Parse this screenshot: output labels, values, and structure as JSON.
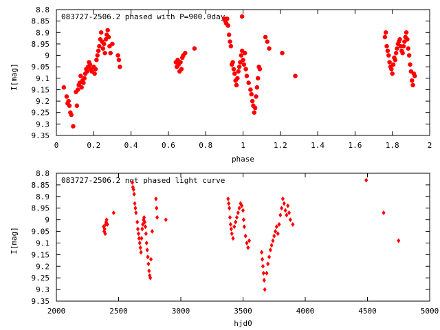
{
  "chart_data": [
    {
      "type": "scatter",
      "title": "083727-2506.2 phased with P=900.0day",
      "xlabel": "phase",
      "ylabel": "I[mag]",
      "xlim": [
        0,
        2
      ],
      "ylim": [
        9.35,
        8.8
      ],
      "y_inverted": true,
      "grid": false,
      "marker_color": "#ff0000",
      "x_ticks": [
        0,
        0.2,
        0.4,
        0.6,
        0.8,
        1,
        1.2,
        1.4,
        1.6,
        1.8,
        2
      ],
      "x_tick_labels": [
        "0",
        "0.2",
        "0.4",
        "0.6",
        "0.8",
        "1",
        "1.2",
        "1.4",
        "1.6",
        "1.8",
        "2"
      ],
      "y_ticks": [
        8.8,
        8.85,
        8.9,
        8.95,
        9,
        9.05,
        9.1,
        9.15,
        9.2,
        9.25,
        9.3,
        9.35
      ],
      "y_tick_labels": [
        "8.8",
        "8.85",
        "8.9",
        "8.95",
        "9",
        "9.05",
        "9.1",
        "9.15",
        "9.2",
        "9.25",
        "9.3",
        "9.35"
      ],
      "series": [
        {
          "points": [
            [
              0.04,
              9.14
            ],
            [
              0.055,
              9.18
            ],
            [
              0.06,
              9.21
            ],
            [
              0.065,
              9.2
            ],
            [
              0.07,
              9.22
            ],
            [
              0.075,
              9.25
            ],
            [
              0.08,
              9.26
            ],
            [
              0.09,
              9.31
            ],
            [
              0.105,
              9.16
            ],
            [
              0.11,
              9.22
            ],
            [
              0.115,
              9.15
            ],
            [
              0.12,
              9.13
            ],
            [
              0.125,
              9.12
            ],
            [
              0.13,
              9.09
            ],
            [
              0.135,
              9.14
            ],
            [
              0.14,
              9.11
            ],
            [
              0.145,
              9.12
            ],
            [
              0.15,
              9.1
            ],
            [
              0.155,
              9.08
            ],
            [
              0.16,
              9.06
            ],
            [
              0.165,
              9.07
            ],
            [
              0.17,
              9.05
            ],
            [
              0.175,
              9.03
            ],
            [
              0.18,
              9.04
            ],
            [
              0.185,
              9.06
            ],
            [
              0.19,
              9.07
            ],
            [
              0.2,
              9.05
            ],
            [
              0.205,
              9.08
            ],
            [
              0.21,
              9.06
            ],
            [
              0.215,
              9.02
            ],
            [
              0.22,
              9.0
            ],
            [
              0.225,
              8.98
            ],
            [
              0.23,
              8.96
            ],
            [
              0.235,
              8.93
            ],
            [
              0.24,
              8.9
            ],
            [
              0.245,
              8.94
            ],
            [
              0.25,
              8.97
            ],
            [
              0.255,
              8.95
            ],
            [
              0.26,
              8.99
            ],
            [
              0.265,
              8.93
            ],
            [
              0.27,
              8.91
            ],
            [
              0.275,
              8.89
            ],
            [
              0.28,
              8.92
            ],
            [
              0.285,
              8.96
            ],
            [
              0.29,
              8.99
            ],
            [
              0.3,
              8.95
            ],
            [
              0.33,
              9.0
            ],
            [
              0.335,
              9.02
            ],
            [
              0.34,
              9.05
            ],
            [
              0.64,
              9.03
            ],
            [
              0.645,
              9.05
            ],
            [
              0.65,
              9.02
            ],
            [
              0.655,
              9.04
            ],
            [
              0.66,
              9.07
            ],
            [
              0.665,
              9.03
            ],
            [
              0.67,
              9.06
            ],
            [
              0.675,
              9.01
            ],
            [
              0.68,
              9.0
            ],
            [
              0.69,
              8.99
            ],
            [
              0.74,
              8.97
            ],
            [
              0.9,
              8.84
            ],
            [
              0.905,
              8.85
            ],
            [
              0.91,
              8.86
            ],
            [
              0.915,
              8.84
            ],
            [
              0.92,
              8.87
            ],
            [
              0.925,
              8.91
            ],
            [
              0.93,
              8.94
            ],
            [
              0.935,
              8.96
            ],
            [
              0.94,
              9.04
            ],
            [
              0.945,
              9.03
            ],
            [
              0.95,
              9.06
            ],
            [
              0.955,
              9.08
            ],
            [
              0.96,
              9.11
            ],
            [
              0.965,
              9.13
            ],
            [
              0.97,
              9.1
            ],
            [
              0.975,
              9.07
            ],
            [
              0.98,
              9.05
            ],
            [
              0.985,
              9.03
            ],
            [
              0.99,
              9.0
            ],
            [
              0.995,
              8.98
            ],
            [
              1.0,
              9.02
            ],
            [
              1.005,
              9.04
            ],
            [
              1.01,
              8.99
            ],
            [
              1.015,
              9.06
            ],
            [
              1.02,
              9.09
            ],
            [
              1.03,
              9.12
            ],
            [
              1.04,
              9.15
            ],
            [
              1.045,
              9.17
            ],
            [
              1.05,
              9.2
            ],
            [
              1.055,
              9.22
            ],
            [
              1.06,
              9.25
            ],
            [
              1.065,
              9.23
            ],
            [
              1.07,
              9.18
            ],
            [
              1.075,
              9.14
            ],
            [
              1.08,
              9.1
            ],
            [
              1.085,
              9.05
            ],
            [
              1.09,
              9.06
            ],
            [
              0.995,
              8.83
            ],
            [
              1.12,
              8.92
            ],
            [
              1.13,
              8.94
            ],
            [
              1.14,
              8.97
            ],
            [
              1.21,
              8.99
            ],
            [
              1.28,
              9.09
            ],
            [
              1.76,
              8.92
            ],
            [
              1.765,
              8.9
            ],
            [
              1.77,
              8.96
            ],
            [
              1.775,
              8.98
            ],
            [
              1.78,
              9.0
            ],
            [
              1.785,
              9.03
            ],
            [
              1.79,
              9.05
            ],
            [
              1.795,
              9.06
            ],
            [
              1.8,
              9.08
            ],
            [
              1.805,
              9.04
            ],
            [
              1.81,
              9.01
            ],
            [
              1.815,
              9.02
            ],
            [
              1.82,
              8.99
            ],
            [
              1.825,
              8.97
            ],
            [
              1.83,
              8.95
            ],
            [
              1.835,
              8.94
            ],
            [
              1.84,
              8.93
            ],
            [
              1.845,
              8.96
            ],
            [
              1.85,
              8.98
            ],
            [
              1.855,
              8.99
            ],
            [
              1.86,
              8.96
            ],
            [
              1.865,
              8.94
            ],
            [
              1.87,
              8.92
            ],
            [
              1.875,
              8.9
            ],
            [
              1.88,
              8.93
            ],
            [
              1.885,
              8.97
            ],
            [
              1.89,
              9.0
            ],
            [
              1.895,
              9.04
            ],
            [
              1.9,
              9.07
            ],
            [
              1.905,
              9.11
            ],
            [
              1.91,
              9.13
            ],
            [
              1.915,
              9.08
            ],
            [
              1.92,
              9.09
            ]
          ]
        }
      ]
    },
    {
      "type": "scatter",
      "title": "083727-2506.2 not phased light curve",
      "xlabel": "hjd0",
      "ylabel": "I[mag]",
      "xlim": [
        2000,
        5000
      ],
      "ylim": [
        9.35,
        8.8
      ],
      "y_inverted": true,
      "grid": false,
      "marker_color": "#ff0000",
      "x_ticks": [
        2000,
        2500,
        3000,
        3500,
        4000,
        4500,
        5000
      ],
      "x_tick_labels": [
        "2000",
        "2500",
        "3000",
        "3500",
        "4000",
        "4500",
        "5000"
      ],
      "y_ticks": [
        8.8,
        8.85,
        8.9,
        8.95,
        9,
        9.05,
        9.1,
        9.15,
        9.2,
        9.25,
        9.3,
        9.35
      ],
      "y_tick_labels": [
        "8.8",
        "8.85",
        "8.9",
        "8.95",
        "9",
        "9.05",
        "9.1",
        "9.15",
        "9.2",
        "9.25",
        "9.3",
        "9.35"
      ],
      "series": [
        {
          "points": [
            [
              2380,
              9.03
            ],
            [
              2384,
              9.05
            ],
            [
              2388,
              9.04
            ],
            [
              2392,
              9.06
            ],
            [
              2396,
              9.02
            ],
            [
              2400,
              9.01
            ],
            [
              2404,
              9.0
            ],
            [
              2410,
              9.02
            ],
            [
              2460,
              8.97
            ],
            [
              2610,
              8.84
            ],
            [
              2615,
              8.86
            ],
            [
              2620,
              8.87
            ],
            [
              2625,
              8.89
            ],
            [
              2630,
              8.93
            ],
            [
              2635,
              8.95
            ],
            [
              2640,
              8.97
            ],
            [
              2650,
              9.01
            ],
            [
              2655,
              9.04
            ],
            [
              2660,
              9.06
            ],
            [
              2665,
              9.08
            ],
            [
              2670,
              9.1
            ],
            [
              2675,
              9.12
            ],
            [
              2680,
              9.14
            ],
            [
              2685,
              9.08
            ],
            [
              2690,
              9.04
            ],
            [
              2695,
              9.02
            ],
            [
              2700,
              9.0
            ],
            [
              2705,
              8.99
            ],
            [
              2710,
              9.01
            ],
            [
              2715,
              9.03
            ],
            [
              2720,
              9.06
            ],
            [
              2725,
              9.1
            ],
            [
              2730,
              9.13
            ],
            [
              2735,
              9.16
            ],
            [
              2740,
              9.19
            ],
            [
              2745,
              9.22
            ],
            [
              2750,
              9.24
            ],
            [
              2755,
              9.25
            ],
            [
              2760,
              9.17
            ],
            [
              2770,
              9.05
            ],
            [
              2800,
              8.91
            ],
            [
              2805,
              8.95
            ],
            [
              2810,
              8.99
            ],
            [
              2880,
              9.0
            ],
            [
              3380,
              8.91
            ],
            [
              3385,
              8.93
            ],
            [
              3390,
              8.95
            ],
            [
              3395,
              8.99
            ],
            [
              3400,
              9.02
            ],
            [
              3405,
              9.04
            ],
            [
              3410,
              9.06
            ],
            [
              3420,
              9.08
            ],
            [
              3430,
              9.03
            ],
            [
              3440,
              9.01
            ],
            [
              3450,
              8.99
            ],
            [
              3460,
              8.97
            ],
            [
              3470,
              8.95
            ],
            [
              3480,
              8.93
            ],
            [
              3490,
              8.94
            ],
            [
              3500,
              8.96
            ],
            [
              3505,
              9.0
            ],
            [
              3510,
              9.03
            ],
            [
              3520,
              9.07
            ],
            [
              3530,
              9.1
            ],
            [
              3540,
              9.12
            ],
            [
              3550,
              9.09
            ],
            [
              3650,
              9.14
            ],
            [
              3655,
              9.17
            ],
            [
              3660,
              9.2
            ],
            [
              3665,
              9.23
            ],
            [
              3670,
              9.26
            ],
            [
              3675,
              9.3
            ],
            [
              3690,
              9.23
            ],
            [
              3700,
              9.19
            ],
            [
              3710,
              9.16
            ],
            [
              3720,
              9.13
            ],
            [
              3730,
              9.11
            ],
            [
              3740,
              9.09
            ],
            [
              3750,
              9.07
            ],
            [
              3760,
              9.05
            ],
            [
              3770,
              9.03
            ],
            [
              3780,
              9.06
            ],
            [
              3790,
              9.02
            ],
            [
              3800,
              8.98
            ],
            [
              3810,
              8.95
            ],
            [
              3820,
              8.91
            ],
            [
              3830,
              8.93
            ],
            [
              3840,
              8.96
            ],
            [
              3850,
              8.98
            ],
            [
              3860,
              8.94
            ],
            [
              3870,
              8.97
            ],
            [
              3880,
              9.0
            ],
            [
              3900,
              9.02
            ],
            [
              4490,
              8.83
            ],
            [
              4630,
              8.97
            ],
            [
              4750,
              9.09
            ]
          ]
        }
      ]
    }
  ]
}
